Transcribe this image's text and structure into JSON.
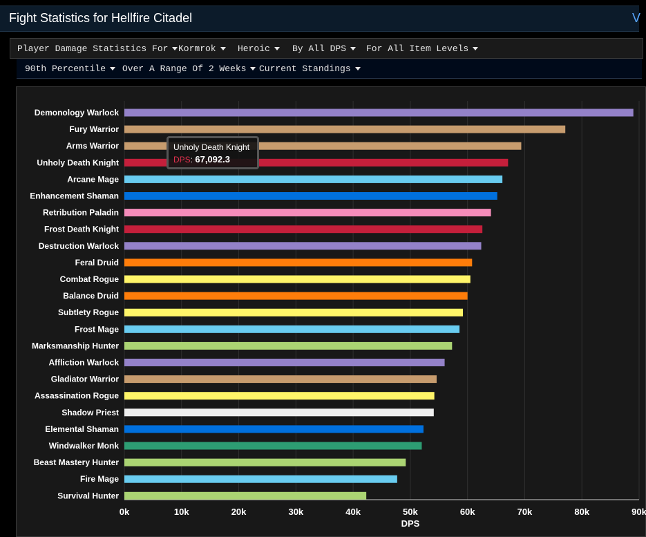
{
  "header": {
    "title": "Fight Statistics for Hellfire Citadel",
    "extra": "V"
  },
  "toolbar": {
    "row1": [
      "Player Damage Statistics For",
      "Kormrok",
      "Heroic",
      "By All DPS",
      "For All Item Levels"
    ],
    "row2": [
      "90th Percentile",
      "Over A Range Of 2 Weeks",
      "Current Standings"
    ]
  },
  "tooltip": {
    "name": "Unholy Death Knight",
    "key": "DPS",
    "value": "67,092.3"
  },
  "chart_data": {
    "type": "bar",
    "orientation": "horizontal",
    "xlabel": "DPS",
    "xlim": [
      0,
      90000
    ],
    "ticks": [
      "0k",
      "10k",
      "20k",
      "30k",
      "40k",
      "50k",
      "60k",
      "70k",
      "80k",
      "90k"
    ],
    "categories": [
      "Demonology Warlock",
      "Fury Warrior",
      "Arms Warrior",
      "Unholy Death Knight",
      "Arcane Mage",
      "Enhancement Shaman",
      "Retribution Paladin",
      "Frost Death Knight",
      "Destruction Warlock",
      "Feral Druid",
      "Combat Rogue",
      "Balance Druid",
      "Subtlety Rogue",
      "Frost Mage",
      "Marksmanship Hunter",
      "Affliction Warlock",
      "Gladiator Warrior",
      "Assassination Rogue",
      "Shadow Priest",
      "Elemental Shaman",
      "Windwalker Monk",
      "Beast Mastery Hunter",
      "Fire Mage",
      "Survival Hunter"
    ],
    "values": [
      89000,
      77100,
      69400,
      67092,
      66100,
      65200,
      64100,
      62600,
      62400,
      60800,
      60500,
      60000,
      59200,
      58600,
      57300,
      56000,
      54600,
      54200,
      54100,
      52300,
      52000,
      49200,
      47700,
      42300
    ],
    "colors": [
      "#9482c9",
      "#c79c6e",
      "#c79c6e",
      "#c41f3b",
      "#69ccf0",
      "#0070de",
      "#f58cba",
      "#c41f3b",
      "#9482c9",
      "#ff7d0a",
      "#fff569",
      "#ff7d0a",
      "#fff569",
      "#69ccf0",
      "#abd473",
      "#9482c9",
      "#c79c6e",
      "#fff569",
      "#f0f0f0",
      "#0070de",
      "#2d9d73",
      "#abd473",
      "#69ccf0",
      "#abd473"
    ]
  }
}
